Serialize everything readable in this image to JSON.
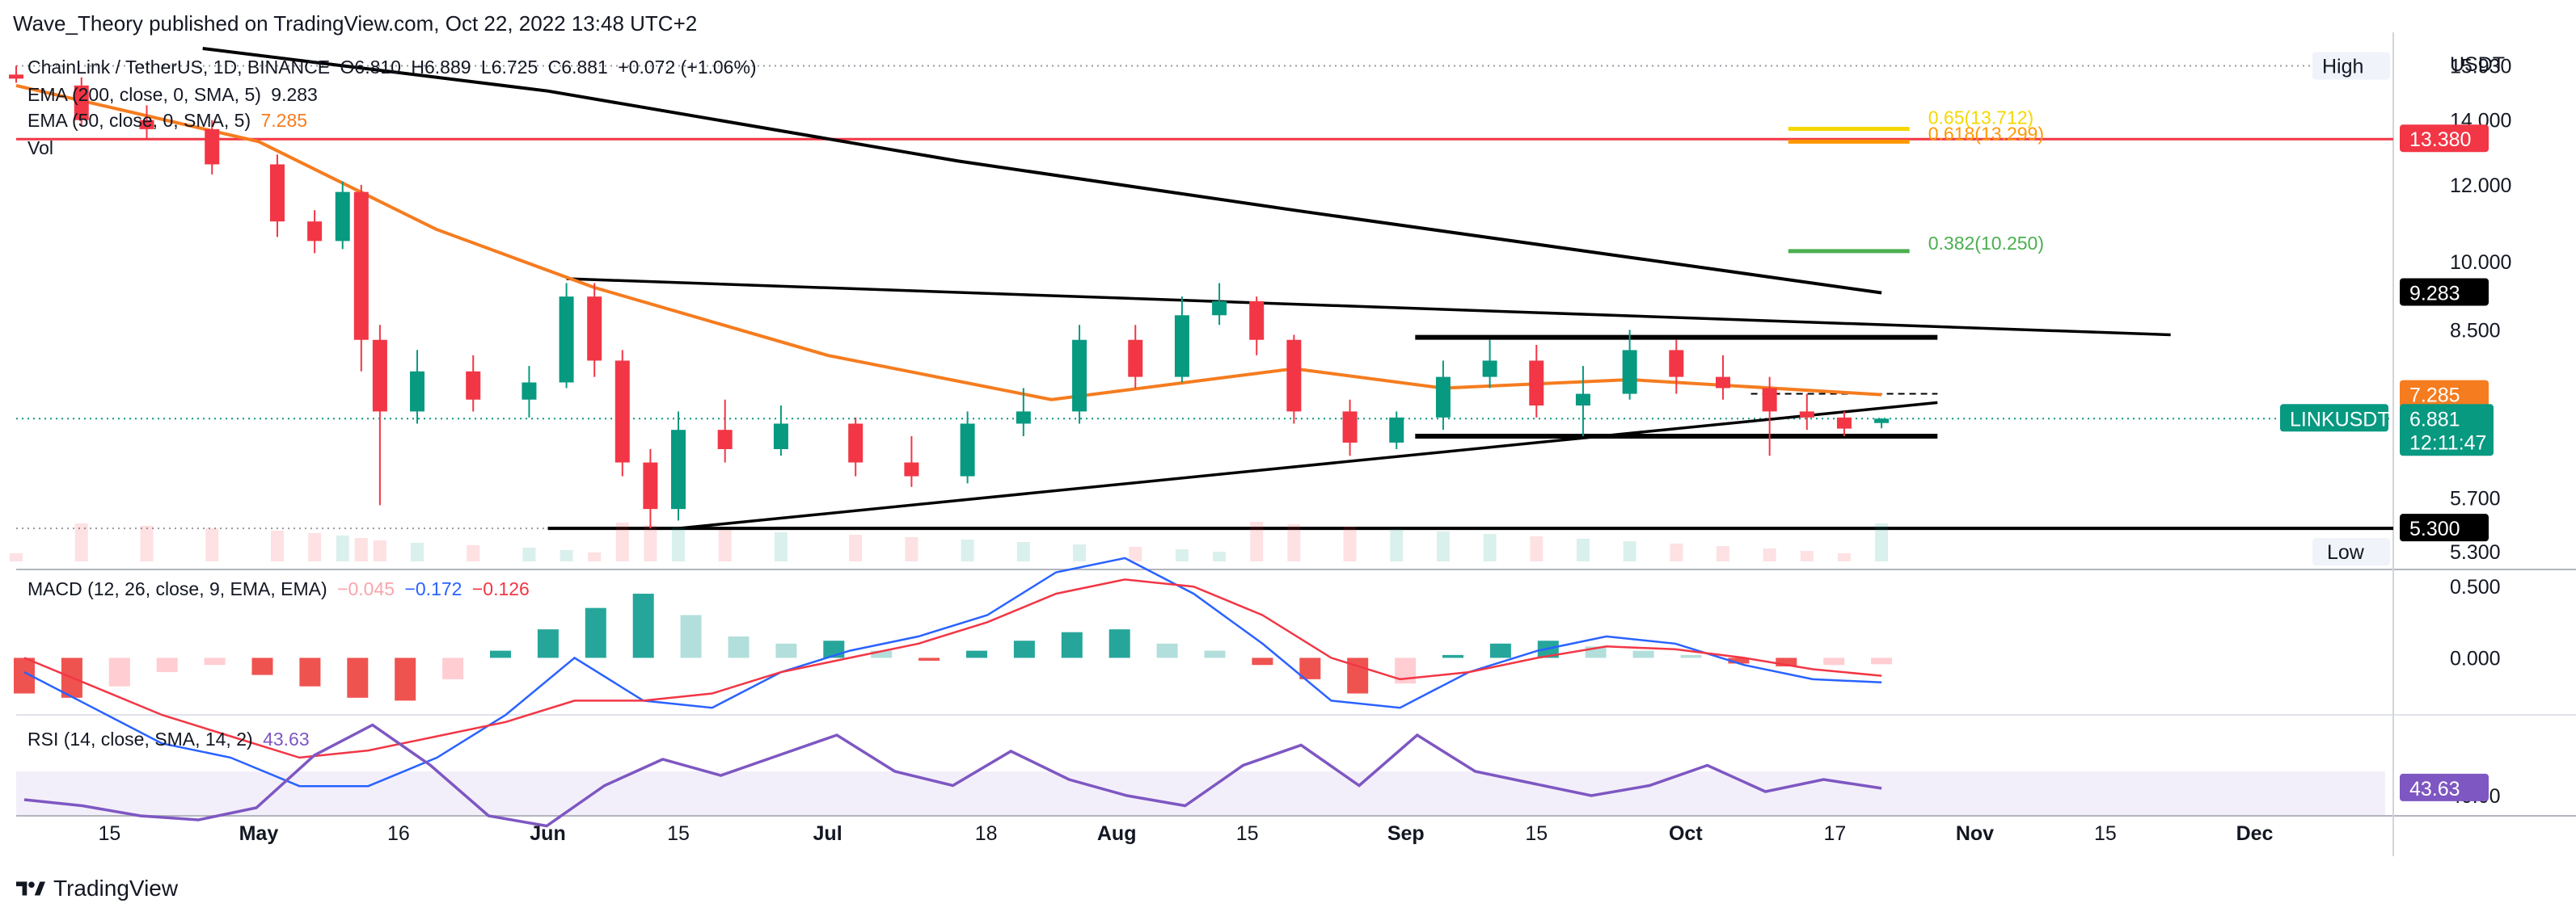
{
  "header": {
    "publisher": "Wave_Theory published on TradingView.com, Oct 22, 2022 13:48 UTC+2"
  },
  "symbol_line": {
    "name": "ChainLink / TetherUS, 1D, BINANCE",
    "o": "O6.810",
    "h": "H6.889",
    "l": "L6.725",
    "c": "C6.881",
    "change": "+0.072 (+1.06%)"
  },
  "indicators": {
    "ema200_label": "EMA (200, close, 0, SMA, 5)",
    "ema200_value": "9.283",
    "ema50_label": "EMA (50, close, 0, SMA, 5)",
    "ema50_value": "7.285",
    "vol_label": "Vol",
    "macd_label": "MACD (12, 26, close, 9, EMA, EMA)",
    "macd_hist": "−0.045",
    "macd_line": "−0.172",
    "macd_signal": "−0.126",
    "rsi_label": "RSI (14, close, SMA, 14, 2)",
    "rsi_value": "43.63"
  },
  "price_axis": {
    "currency": "USDT",
    "ticks": [
      "14.000",
      "12.000",
      "10.000",
      "8.500",
      "5.700"
    ],
    "high_tag": "High",
    "high_value": "15.930",
    "low_tag": "Low",
    "low_value": "5.300",
    "resistance_value": "13.380",
    "ema200_tag": "9.283",
    "ema50_tag": "7.285",
    "symbol_tag": "LINKUSDT",
    "last_price": "6.881",
    "countdown": "12:11:47",
    "support_tag": "5.300",
    "macd_ticks": [
      "0.500",
      "0.000"
    ],
    "rsi_tag": "43.63",
    "rsi_tick": "40.00"
  },
  "fib_labels": {
    "fib065": "0.65(13.712)",
    "fib0618": "0.618(13.299)",
    "fib0382": "0.382(10.250)"
  },
  "time_axis": [
    "15",
    "May",
    "16",
    "Jun",
    "15",
    "Jul",
    "18",
    "Aug",
    "15",
    "Sep",
    "15",
    "Oct",
    "17",
    "Nov",
    "15",
    "Dec"
  ],
  "colors": {
    "up": "#089981",
    "down": "#f23645",
    "ema50": "#f57c1f",
    "ema200": "#000000",
    "macd_line": "#2962ff",
    "signal_line": "#f23645",
    "rsi": "#7e57c2",
    "rsi_band": "#f3effa",
    "fib065": "#f5d800",
    "fib0618": "#ff9800",
    "fib0382": "#4caf50",
    "resistance": "#f23645"
  },
  "chart_data": {
    "type": "candlestick",
    "title": "ChainLink / TetherUS, 1D, BINANCE",
    "ylim": [
      4.9,
      16.6
    ],
    "y_scale": "log",
    "x_range": [
      "2022-04-05",
      "2022-12-15"
    ],
    "candles": [
      {
        "date": "2022-04-05",
        "o": 15.6,
        "h": 15.93,
        "c": 15.45,
        "l": 15.3
      },
      {
        "date": "2022-04-12",
        "o": 15.2,
        "h": 15.5,
        "c": 14.0,
        "l": 13.8
      },
      {
        "date": "2022-04-19",
        "o": 14.0,
        "h": 14.5,
        "c": 13.7,
        "l": 13.4
      },
      {
        "date": "2022-04-26",
        "o": 13.7,
        "h": 14.0,
        "c": 12.6,
        "l": 12.3
      },
      {
        "date": "2022-05-03",
        "o": 12.6,
        "h": 12.9,
        "c": 11.0,
        "l": 10.6
      },
      {
        "date": "2022-05-07",
        "o": 11.0,
        "h": 11.3,
        "c": 10.5,
        "l": 10.2
      },
      {
        "date": "2022-05-10",
        "o": 10.5,
        "h": 12.1,
        "c": 11.8,
        "l": 10.3
      },
      {
        "date": "2022-05-12",
        "o": 11.8,
        "h": 12.0,
        "c": 8.3,
        "l": 7.7
      },
      {
        "date": "2022-05-14",
        "o": 8.3,
        "h": 8.6,
        "c": 7.0,
        "l": 5.6
      },
      {
        "date": "2022-05-18",
        "o": 7.0,
        "h": 8.1,
        "c": 7.7,
        "l": 6.8
      },
      {
        "date": "2022-05-24",
        "o": 7.7,
        "h": 8.0,
        "c": 7.2,
        "l": 7.0
      },
      {
        "date": "2022-05-30",
        "o": 7.2,
        "h": 7.8,
        "c": 7.5,
        "l": 6.9
      },
      {
        "date": "2022-06-03",
        "o": 7.5,
        "h": 9.5,
        "c": 9.2,
        "l": 7.4
      },
      {
        "date": "2022-06-06",
        "o": 9.2,
        "h": 9.5,
        "c": 7.9,
        "l": 7.6
      },
      {
        "date": "2022-06-09",
        "o": 7.9,
        "h": 8.1,
        "c": 6.2,
        "l": 6.0
      },
      {
        "date": "2022-06-12",
        "o": 6.2,
        "h": 6.4,
        "c": 5.55,
        "l": 5.3
      },
      {
        "date": "2022-06-15",
        "o": 5.55,
        "h": 7.0,
        "c": 6.7,
        "l": 5.4
      },
      {
        "date": "2022-06-20",
        "o": 6.7,
        "h": 7.2,
        "c": 6.4,
        "l": 6.2
      },
      {
        "date": "2022-06-26",
        "o": 6.4,
        "h": 7.1,
        "c": 6.8,
        "l": 6.3
      },
      {
        "date": "2022-07-04",
        "o": 6.8,
        "h": 6.9,
        "c": 6.2,
        "l": 6.0
      },
      {
        "date": "2022-07-10",
        "o": 6.2,
        "h": 6.6,
        "c": 6.0,
        "l": 5.85
      },
      {
        "date": "2022-07-16",
        "o": 6.0,
        "h": 7.0,
        "c": 6.8,
        "l": 5.9
      },
      {
        "date": "2022-07-22",
        "o": 6.8,
        "h": 7.4,
        "c": 7.0,
        "l": 6.6
      },
      {
        "date": "2022-07-28",
        "o": 7.0,
        "h": 8.6,
        "c": 8.3,
        "l": 6.8
      },
      {
        "date": "2022-08-03",
        "o": 8.3,
        "h": 8.6,
        "c": 7.6,
        "l": 7.4
      },
      {
        "date": "2022-08-08",
        "o": 7.6,
        "h": 9.2,
        "c": 8.8,
        "l": 7.5
      },
      {
        "date": "2022-08-12",
        "o": 8.8,
        "h": 9.5,
        "c": 9.1,
        "l": 8.6
      },
      {
        "date": "2022-08-16",
        "o": 9.1,
        "h": 9.2,
        "c": 8.3,
        "l": 8.0
      },
      {
        "date": "2022-08-20",
        "o": 8.3,
        "h": 8.4,
        "c": 7.0,
        "l": 6.8
      },
      {
        "date": "2022-08-26",
        "o": 7.0,
        "h": 7.2,
        "c": 6.5,
        "l": 6.3
      },
      {
        "date": "2022-08-31",
        "o": 6.5,
        "h": 7.0,
        "c": 6.9,
        "l": 6.4
      },
      {
        "date": "2022-09-05",
        "o": 6.9,
        "h": 7.9,
        "c": 7.6,
        "l": 6.7
      },
      {
        "date": "2022-09-10",
        "o": 7.6,
        "h": 8.3,
        "c": 7.9,
        "l": 7.4
      },
      {
        "date": "2022-09-15",
        "o": 7.9,
        "h": 8.2,
        "c": 7.1,
        "l": 6.9
      },
      {
        "date": "2022-09-20",
        "o": 7.1,
        "h": 7.8,
        "c": 7.3,
        "l": 6.6
      },
      {
        "date": "2022-09-25",
        "o": 7.3,
        "h": 8.5,
        "c": 8.1,
        "l": 7.2
      },
      {
        "date": "2022-09-30",
        "o": 8.1,
        "h": 8.3,
        "c": 7.6,
        "l": 7.3
      },
      {
        "date": "2022-10-05",
        "o": 7.6,
        "h": 8.0,
        "c": 7.4,
        "l": 7.2
      },
      {
        "date": "2022-10-10",
        "o": 7.4,
        "h": 7.6,
        "c": 7.0,
        "l": 6.3
      },
      {
        "date": "2022-10-14",
        "o": 7.0,
        "h": 7.3,
        "c": 6.9,
        "l": 6.7
      },
      {
        "date": "2022-10-18",
        "o": 6.9,
        "h": 7.0,
        "c": 6.72,
        "l": 6.6
      },
      {
        "date": "2022-10-22",
        "o": 6.81,
        "h": 6.889,
        "c": 6.881,
        "l": 6.725
      }
    ],
    "ema50": [
      {
        "date": "2022-04-05",
        "value": 15.2
      },
      {
        "date": "2022-05-01",
        "value": 13.3
      },
      {
        "date": "2022-05-20",
        "value": 10.8
      },
      {
        "date": "2022-06-06",
        "value": 9.4
      },
      {
        "date": "2022-07-01",
        "value": 8.0
      },
      {
        "date": "2022-07-25",
        "value": 7.2
      },
      {
        "date": "2022-08-20",
        "value": 7.75
      },
      {
        "date": "2022-09-05",
        "value": 7.4
      },
      {
        "date": "2022-09-25",
        "value": 7.55
      },
      {
        "date": "2022-10-22",
        "value": 7.285
      }
    ],
    "ema200": [
      {
        "date": "2022-04-25",
        "value": 16.6
      },
      {
        "date": "2022-06-01",
        "value": 15.0
      },
      {
        "date": "2022-07-15",
        "value": 12.7
      },
      {
        "date": "2022-08-20",
        "value": 11.3
      },
      {
        "date": "2022-09-25",
        "value": 10.1
      },
      {
        "date": "2022-10-22",
        "value": 9.283
      }
    ],
    "annotations": {
      "horizontal_resistance": 13.38,
      "horizontal_support": 5.3,
      "fib": [
        {
          "level": "0.65",
          "price": 13.712
        },
        {
          "level": "0.618",
          "price": 13.299
        },
        {
          "level": "0.382",
          "price": 10.25
        }
      ],
      "triangle_upper": [
        {
          "date": "2022-06-03",
          "value": 9.6
        },
        {
          "date": "2022-11-22",
          "value": 8.4
        }
      ],
      "triangle_lower": [
        {
          "date": "2022-06-15",
          "value": 5.3
        },
        {
          "date": "2022-10-28",
          "value": 7.15
        }
      ],
      "range_top": 8.35,
      "range_bottom": 6.6,
      "dashed_line": 7.3
    },
    "macd": {
      "ylim": [
        -0.4,
        0.62
      ],
      "hist": [
        -0.25,
        -0.28,
        -0.2,
        -0.1,
        -0.05,
        -0.12,
        -0.2,
        -0.28,
        -0.3,
        -0.15,
        0.05,
        0.2,
        0.35,
        0.45,
        0.3,
        0.15,
        0.1,
        0.12,
        0.05,
        -0.02,
        0.05,
        0.12,
        0.18,
        0.2,
        0.1,
        0.05,
        -0.05,
        -0.15,
        -0.25,
        -0.18,
        0.02,
        0.1,
        0.12,
        0.08,
        0.05,
        0.02,
        -0.04,
        -0.06,
        -0.05,
        -0.045
      ],
      "line": [
        -0.1,
        -0.35,
        -0.6,
        -0.7,
        -0.9,
        -0.9,
        -0.7,
        -0.4,
        0.0,
        -0.3,
        -0.35,
        -0.1,
        0.05,
        0.15,
        0.3,
        0.6,
        0.7,
        0.45,
        0.1,
        -0.3,
        -0.35,
        -0.1,
        0.05,
        0.15,
        0.1,
        -0.05,
        -0.15,
        -0.172
      ],
      "signal": [
        0.0,
        -0.2,
        -0.4,
        -0.55,
        -0.7,
        -0.65,
        -0.55,
        -0.45,
        -0.3,
        -0.3,
        -0.25,
        -0.1,
        0.0,
        0.1,
        0.25,
        0.45,
        0.55,
        0.5,
        0.3,
        0.0,
        -0.15,
        -0.1,
        0.0,
        0.08,
        0.06,
        0.0,
        -0.08,
        -0.126
      ]
    },
    "rsi": {
      "ylim": [
        30,
        80
      ],
      "values": [
        38,
        35,
        30,
        28,
        34,
        60,
        75,
        55,
        30,
        25,
        45,
        58,
        50,
        60,
        70,
        52,
        45,
        62,
        48,
        40,
        35,
        55,
        65,
        45,
        70,
        52,
        46,
        40,
        45,
        55,
        42,
        48,
        43.63
      ]
    }
  }
}
